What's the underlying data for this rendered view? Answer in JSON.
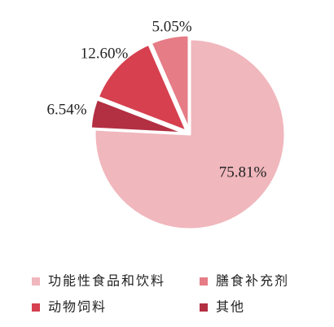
{
  "chart_data": {
    "type": "pie",
    "title": "",
    "series": [
      {
        "name": "功能性食品和饮料",
        "value": 75.81,
        "label": "75.81%",
        "color": "#f0b7bd"
      },
      {
        "name": "膳食补充剂",
        "value": 6.54,
        "label": "6.54%",
        "color": "#e57c86"
      },
      {
        "name": "动物饲料",
        "value": 12.6,
        "label": "12.60%",
        "color": "#d6404f"
      },
      {
        "name": "其他",
        "value": 5.05,
        "label": "5.05%",
        "color": "#b32f42"
      }
    ],
    "legend_position": "bottom"
  }
}
